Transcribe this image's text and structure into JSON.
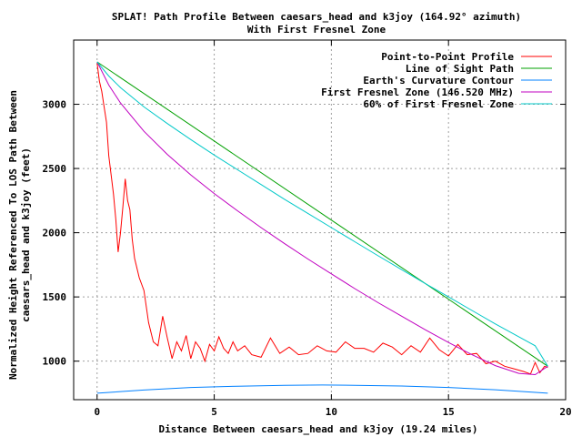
{
  "chart_data": {
    "type": "line",
    "title": "SPLAT! Path Profile Between caesars_head and k3joy (164.92° azimuth)",
    "subtitle": "With First Fresnel Zone",
    "xlabel": "Distance Between caesars_head and k3joy (19.24 miles)",
    "ylabel": [
      "Normalized Height Referenced To LOS Path Between",
      "caesars_head and k3joy (feet)"
    ],
    "xlim": [
      -1,
      20
    ],
    "ylim": [
      700,
      3500
    ],
    "x_ticks": [
      0,
      5,
      10,
      15,
      20
    ],
    "y_ticks": [
      1000,
      1500,
      2000,
      2500,
      3000
    ],
    "grid": true,
    "legend_position": "top-right",
    "series": [
      {
        "name": "Point-to-Point Profile",
        "color": "#ff0000",
        "x": [
          0,
          0.1,
          0.2,
          0.3,
          0.4,
          0.5,
          0.6,
          0.7,
          0.8,
          0.9,
          1.0,
          1.1,
          1.2,
          1.3,
          1.4,
          1.5,
          1.6,
          1.8,
          2.0,
          2.2,
          2.4,
          2.6,
          2.8,
          3.0,
          3.2,
          3.4,
          3.6,
          3.8,
          4.0,
          4.2,
          4.4,
          4.6,
          4.8,
          5.0,
          5.2,
          5.4,
          5.6,
          5.8,
          6.0,
          6.3,
          6.6,
          7.0,
          7.4,
          7.8,
          8.2,
          8.6,
          9.0,
          9.4,
          9.8,
          10.2,
          10.6,
          11.0,
          11.4,
          11.8,
          12.2,
          12.6,
          13.0,
          13.4,
          13.8,
          14.2,
          14.6,
          15.0,
          15.4,
          15.8,
          16.2,
          16.6,
          17.0,
          17.4,
          17.8,
          18.2,
          18.5,
          18.7,
          18.9,
          19.1,
          19.24
        ],
        "y": [
          3320,
          3180,
          3100,
          2980,
          2860,
          2600,
          2450,
          2300,
          2100,
          1850,
          2000,
          2200,
          2420,
          2250,
          2180,
          1950,
          1800,
          1650,
          1550,
          1300,
          1150,
          1120,
          1350,
          1180,
          1020,
          1150,
          1080,
          1200,
          1020,
          1150,
          1100,
          1000,
          1130,
          1080,
          1190,
          1100,
          1060,
          1150,
          1080,
          1120,
          1050,
          1030,
          1180,
          1060,
          1110,
          1050,
          1060,
          1120,
          1080,
          1070,
          1150,
          1100,
          1100,
          1070,
          1140,
          1110,
          1050,
          1120,
          1070,
          1180,
          1090,
          1040,
          1130,
          1050,
          1060,
          980,
          1000,
          960,
          940,
          920,
          900,
          990,
          910,
          960,
          950
        ]
      },
      {
        "name": "Line of Sight Path",
        "color": "#00a000",
        "x": [
          0,
          19.24
        ],
        "y": [
          3330,
          960
        ]
      },
      {
        "name": "Earth's Curvature Contour",
        "color": "#0080ff",
        "x": [
          0,
          2,
          4,
          6,
          8,
          9.62,
          11,
          13,
          15,
          17,
          19.24
        ],
        "y": [
          750,
          775,
          795,
          805,
          812,
          814,
          812,
          806,
          795,
          777,
          750
        ]
      },
      {
        "name": "First Fresnel Zone (146.520 MHz)",
        "color": "#c000c0",
        "x": [
          0,
          0.5,
          1,
          2,
          3,
          4,
          5,
          6,
          7,
          8,
          9,
          10,
          11,
          12,
          13,
          14,
          15,
          16,
          17,
          18,
          18.7,
          19.24
        ],
        "y": [
          3330,
          3150,
          3010,
          2790,
          2610,
          2450,
          2305,
          2170,
          2040,
          1915,
          1795,
          1680,
          1565,
          1455,
          1350,
          1245,
          1145,
          1050,
          965,
          905,
          895,
          960
        ]
      },
      {
        "name": "60% of First Fresnel Zone",
        "color": "#00c8c8",
        "x": [
          0,
          0.5,
          1,
          2,
          3,
          4,
          5,
          6,
          7,
          8,
          9,
          10,
          11,
          12,
          13,
          14,
          15,
          16,
          17,
          18,
          18.7,
          19.24
        ],
        "y": [
          3330,
          3220,
          3130,
          2980,
          2850,
          2725,
          2605,
          2490,
          2375,
          2260,
          2150,
          2040,
          1930,
          1820,
          1712,
          1605,
          1500,
          1395,
          1290,
          1190,
          1120,
          960
        ]
      }
    ]
  }
}
